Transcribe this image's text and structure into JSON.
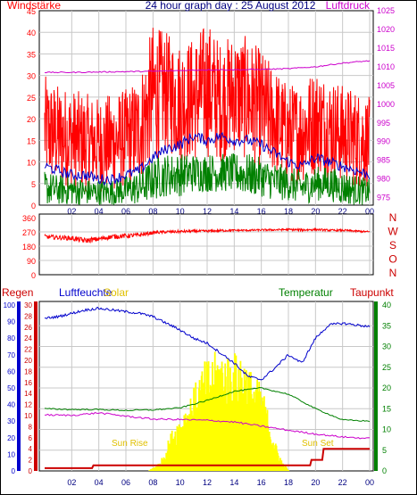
{
  "colors": {
    "red": "#ff0000",
    "darkred": "#cc0000",
    "blue": "#0000cc",
    "green": "#008000",
    "magenta": "#cc00cc",
    "yellow": "#ffff00",
    "yellowtext": "#e0c000",
    "navy": "#000080",
    "grid": "#c8c8c8",
    "frame": "#000000"
  },
  "chart_data": [
    {
      "type": "line",
      "panel": "wind-pressure",
      "title": "24 hour graph day : 25 August 2012",
      "left_label": "Windstärke",
      "right_label": "Luftdruck",
      "x_ticks": [
        "02",
        "04",
        "06",
        "08",
        "10",
        "12",
        "14",
        "16",
        "18",
        "20",
        "22",
        "00"
      ],
      "left_ticks": [
        0,
        5,
        10,
        15,
        20,
        25,
        30,
        35,
        40,
        45
      ],
      "right_ticks": [
        975,
        980,
        985,
        990,
        995,
        1000,
        1005,
        1010,
        1015,
        1020,
        1025
      ],
      "ylim_left": [
        0,
        45
      ],
      "ylim_right": [
        973,
        1025
      ],
      "series": [
        {
          "color": "red",
          "axis": "left",
          "x": [
            0,
            1,
            2,
            3,
            4,
            5,
            6,
            7,
            8,
            9,
            10,
            11,
            12,
            13,
            14,
            15,
            16,
            17,
            18,
            19,
            20,
            21,
            22,
            23,
            24
          ],
          "y": [
            18,
            16,
            14,
            13,
            12,
            12,
            13,
            14,
            22,
            28,
            27,
            28,
            29,
            28,
            29,
            27,
            24,
            20,
            16,
            15,
            18,
            17,
            15,
            14,
            12
          ],
          "min": [
            5,
            4,
            4,
            3,
            3,
            3,
            4,
            5,
            9,
            12,
            10,
            10,
            11,
            10,
            12,
            10,
            8,
            7,
            5,
            5,
            7,
            6,
            5,
            4,
            4
          ],
          "max": [
            30,
            28,
            27,
            26,
            25,
            26,
            27,
            30,
            42,
            40,
            38,
            39,
            43,
            38,
            40,
            39,
            36,
            32,
            28,
            29,
            32,
            30,
            28,
            27,
            25
          ]
        },
        {
          "color": "blue",
          "axis": "left",
          "x": [
            0,
            1,
            2,
            3,
            4,
            5,
            6,
            7,
            8,
            9,
            10,
            11,
            12,
            13,
            14,
            15,
            16,
            17,
            18,
            19,
            20,
            21,
            22,
            23,
            24
          ],
          "y": [
            9,
            8,
            7,
            7,
            6,
            6,
            7,
            8,
            11,
            13,
            14,
            16,
            15,
            16,
            15,
            15,
            14,
            12,
            10,
            9,
            11,
            10,
            9,
            8,
            7
          ]
        },
        {
          "color": "green",
          "axis": "left",
          "x": [
            0,
            1,
            2,
            3,
            4,
            5,
            6,
            7,
            8,
            9,
            10,
            11,
            12,
            13,
            14,
            15,
            16,
            17,
            18,
            19,
            20,
            21,
            22,
            23,
            24
          ],
          "y": [
            4,
            3,
            3,
            2,
            2,
            2,
            3,
            3,
            6,
            7,
            7,
            8,
            8,
            8,
            8,
            8,
            7,
            6,
            5,
            4,
            5,
            5,
            4,
            3,
            2
          ],
          "min": [
            0,
            0,
            0,
            0,
            0,
            0,
            0,
            0,
            1,
            2,
            2,
            3,
            3,
            3,
            3,
            2,
            2,
            1,
            1,
            0,
            1,
            1,
            0,
            0,
            0
          ],
          "max": [
            8,
            7,
            7,
            6,
            6,
            6,
            7,
            8,
            11,
            12,
            12,
            12,
            12,
            12,
            12,
            12,
            11,
            10,
            9,
            8,
            9,
            9,
            8,
            7,
            6
          ]
        },
        {
          "color": "magenta",
          "axis": "right",
          "x": [
            0,
            2,
            4,
            6,
            8,
            10,
            12,
            14,
            16,
            18,
            20,
            22,
            24
          ],
          "y": [
            1008.5,
            1008.5,
            1008.6,
            1008.7,
            1008.8,
            1009.0,
            1009.2,
            1009.2,
            1009.3,
            1009.5,
            1010.0,
            1011.0,
            1011.6
          ]
        }
      ]
    },
    {
      "type": "line",
      "panel": "wind-direction",
      "left_ticks": [
        0,
        90,
        180,
        270,
        360
      ],
      "right_labels": [
        "N",
        "W",
        "S",
        "O",
        "N"
      ],
      "ylim": [
        0,
        360
      ],
      "series": [
        {
          "color": "red",
          "x": [
            0,
            1,
            2,
            3,
            4,
            5,
            6,
            7,
            8,
            9,
            10,
            11,
            12,
            13,
            14,
            15,
            16,
            17,
            18,
            19,
            20,
            21,
            22,
            23,
            24
          ],
          "y": [
            240,
            235,
            230,
            215,
            225,
            240,
            245,
            250,
            265,
            270,
            272,
            275,
            275,
            278,
            280,
            280,
            282,
            283,
            285,
            282,
            285,
            280,
            280,
            275,
            270
          ],
          "noise": [
            25,
            30,
            30,
            35,
            30,
            30,
            30,
            25,
            20,
            18,
            18,
            15,
            15,
            15,
            12,
            12,
            12,
            12,
            12,
            15,
            12,
            12,
            12,
            12,
            12
          ]
        }
      ]
    },
    {
      "type": "line",
      "panel": "rain-humidity-solar-temp",
      "top_labels": {
        "rain": "Regen",
        "humidity": "Luftfeuchte",
        "solar": "Solar",
        "temperature": "Temperatur",
        "dewpoint": "Taupunkt"
      },
      "annotations": {
        "sunrise": "Sun Rise",
        "sunset": "Sun Set"
      },
      "axis_humidity_ticks": [
        0,
        10,
        20,
        30,
        40,
        50,
        60,
        70,
        80,
        90,
        100
      ],
      "axis_rain_ticks": [
        0,
        2,
        4,
        6,
        8,
        10,
        12,
        14,
        16,
        18,
        20,
        22,
        24,
        26,
        28,
        30
      ],
      "axis_temp_ticks": [
        0,
        5,
        10,
        15,
        20,
        25,
        30,
        35,
        40
      ],
      "series": [
        {
          "color": "blue",
          "name_key": "humidity",
          "axis": "humidity",
          "x": [
            0,
            1,
            2,
            3,
            4,
            5,
            6,
            7,
            8,
            9,
            10,
            11,
            12,
            13,
            14,
            15,
            16,
            17,
            18,
            19,
            20,
            21,
            22,
            23,
            24
          ],
          "y": [
            92,
            93,
            95,
            97,
            98,
            97,
            96,
            95,
            93,
            89,
            85,
            80,
            77,
            71,
            65,
            57,
            55,
            62,
            70,
            65,
            80,
            88,
            89,
            88,
            87
          ]
        },
        {
          "color": "green",
          "name_key": "temperature",
          "axis": "temp",
          "x": [
            0,
            2,
            4,
            6,
            8,
            10,
            12,
            14,
            16,
            18,
            20,
            22,
            24
          ],
          "y": [
            15.0,
            14.8,
            14.8,
            14.6,
            14.7,
            15.2,
            17.0,
            19.2,
            20.0,
            18.5,
            15.0,
            12.3,
            12.0
          ]
        },
        {
          "color": "magenta",
          "name_key": "dewpoint",
          "axis": "temp",
          "x": [
            0,
            2,
            4,
            6,
            8,
            10,
            12,
            14,
            16,
            18,
            20,
            22,
            24
          ],
          "y": [
            13.5,
            13.4,
            14.0,
            13.2,
            12.5,
            12.4,
            12.2,
            11.8,
            10.8,
            9.8,
            8.9,
            8.2,
            7.8
          ]
        },
        {
          "color": "red",
          "name_key": "rain",
          "axis": "rain",
          "step": true,
          "x": [
            0,
            3.5,
            3.6,
            19.6,
            19.7,
            20.5,
            20.6,
            24
          ],
          "y": [
            0.5,
            0.5,
            1.0,
            1.0,
            2.0,
            2.0,
            4.0,
            4.0
          ]
        },
        {
          "color": "yellow",
          "name_key": "solar",
          "axis": "temp",
          "fill": true,
          "x": [
            7.6,
            8.5,
            9.0,
            9.5,
            10.0,
            10.5,
            11.0,
            11.5,
            12.0,
            12.5,
            13.0,
            13.5,
            14.0,
            14.5,
            15.0,
            15.5,
            16.0,
            16.5,
            17.0,
            17.5,
            18.0
          ],
          "y": [
            0,
            2,
            6,
            10,
            12,
            15,
            18,
            22,
            24,
            25,
            26,
            25,
            25,
            26,
            22,
            20,
            18,
            12,
            6,
            2,
            0
          ]
        }
      ]
    }
  ]
}
